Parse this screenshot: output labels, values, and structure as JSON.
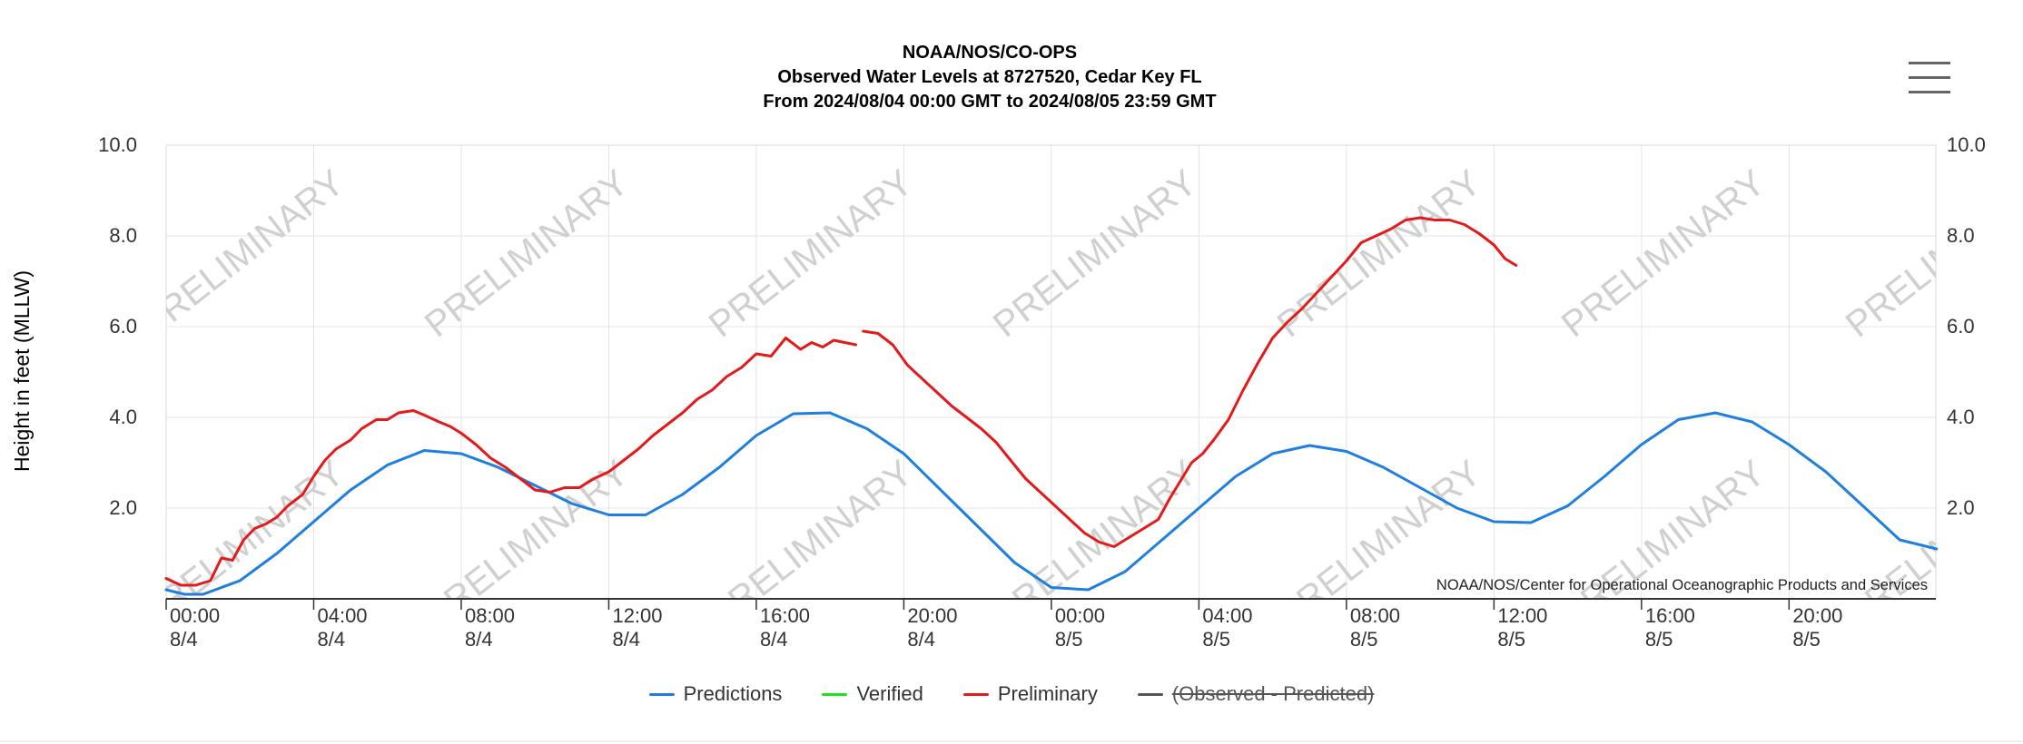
{
  "header": {
    "title_lines": [
      "NOAA/NOS/CO-OPS",
      "Observed Water Levels at 8727520, Cedar Key FL",
      "From 2024/08/04 00:00 GMT to 2024/08/05 23:59 GMT"
    ]
  },
  "menu": {
    "icon": "hamburger-menu-icon"
  },
  "watermark": {
    "text": "PRELIMINARY"
  },
  "credit": {
    "text": "NOAA/NOS/Center for Operational Oceanographic Products and Services"
  },
  "legend": {
    "items": [
      {
        "label": "Predictions",
        "color": "#1f7fe0"
      },
      {
        "label": "Verified",
        "color": "#1de31d"
      },
      {
        "label": "Preliminary",
        "color": "#e41a1a"
      },
      {
        "label": "(Observed - Predicted)",
        "color": "#555555",
        "disabled": true
      }
    ]
  },
  "chart_data": {
    "type": "line",
    "title": "NOAA/NOS/CO-OPS",
    "ylabel": "Height in feet (MLLW)",
    "xlabel": "",
    "ylim": [
      0,
      10
    ],
    "y_ticks": [
      "2.0",
      "4.0",
      "6.0",
      "8.0",
      "10.0"
    ],
    "y_tick_values": [
      2,
      4,
      6,
      8,
      10
    ],
    "x_unit": "hours since 2024/08/04 00:00 GMT",
    "xlim": [
      0,
      47.98
    ],
    "x_ticks": [
      {
        "time": "00:00",
        "date": "8/4"
      },
      {
        "time": "04:00",
        "date": "8/4"
      },
      {
        "time": "08:00",
        "date": "8/4"
      },
      {
        "time": "12:00",
        "date": "8/4"
      },
      {
        "time": "16:00",
        "date": "8/4"
      },
      {
        "time": "20:00",
        "date": "8/4"
      },
      {
        "time": "00:00",
        "date": "8/5"
      },
      {
        "time": "04:00",
        "date": "8/5"
      },
      {
        "time": "08:00",
        "date": "8/5"
      },
      {
        "time": "12:00",
        "date": "8/5"
      },
      {
        "time": "16:00",
        "date": "8/5"
      },
      {
        "time": "20:00",
        "date": "8/5"
      }
    ],
    "x_tick_values": [
      0,
      4,
      8,
      12,
      16,
      20,
      24,
      28,
      32,
      36,
      40,
      44
    ],
    "grid": true,
    "legend_position": "bottom",
    "series": [
      {
        "name": "Predictions",
        "color": "#1f7fe0",
        "x": [
          0,
          0.5,
          1,
          2,
          3,
          4,
          5,
          6,
          7,
          8,
          9,
          10,
          11,
          12,
          13,
          14,
          15,
          16,
          17,
          18,
          19,
          20,
          21,
          22,
          23,
          24,
          25,
          26,
          27,
          28,
          29,
          30,
          31,
          32,
          33,
          34,
          35,
          36,
          37,
          38,
          39,
          40,
          41,
          42,
          43,
          44,
          45,
          46,
          47,
          48
        ],
        "y": [
          0.2,
          0.1,
          0.1,
          0.4,
          1.0,
          1.7,
          2.4,
          2.95,
          3.27,
          3.2,
          2.9,
          2.5,
          2.1,
          1.85,
          1.85,
          2.3,
          2.9,
          3.6,
          4.08,
          4.1,
          3.75,
          3.2,
          2.4,
          1.6,
          0.8,
          0.25,
          0.2,
          0.6,
          1.3,
          2.0,
          2.7,
          3.2,
          3.38,
          3.25,
          2.9,
          2.45,
          2.0,
          1.7,
          1.68,
          2.05,
          2.7,
          3.4,
          3.95,
          4.1,
          3.9,
          3.4,
          2.8,
          2.05,
          1.3,
          1.1
        ]
      },
      {
        "name": "Preliminary",
        "color": "#e41a1a",
        "x": [
          0,
          0.4,
          0.8,
          1.2,
          1.5,
          1.8,
          2.1,
          2.4,
          2.7,
          3.0,
          3.3,
          3.7,
          4.0,
          4.3,
          4.6,
          5.0,
          5.3,
          5.7,
          6.0,
          6.3,
          6.7,
          7.0,
          7.4,
          7.7,
          8.0,
          8.4,
          8.8,
          9.2,
          9.6,
          10.0,
          10.4,
          10.8,
          11.2,
          11.6,
          12.0,
          12.4,
          12.8,
          13.2,
          13.6,
          14.0,
          14.4,
          14.8,
          15.2,
          15.6,
          16.0,
          16.4,
          16.8,
          17.2,
          17.5,
          17.8,
          18.1,
          18.4,
          18.7
        ],
        "y": [
          0.45,
          0.3,
          0.3,
          0.4,
          0.9,
          0.85,
          1.3,
          1.55,
          1.65,
          1.8,
          2.05,
          2.3,
          2.7,
          3.05,
          3.3,
          3.5,
          3.75,
          3.95,
          3.95,
          4.1,
          4.15,
          4.05,
          3.9,
          3.8,
          3.65,
          3.4,
          3.1,
          2.9,
          2.65,
          2.4,
          2.35,
          2.45,
          2.45,
          2.65,
          2.8,
          3.05,
          3.3,
          3.6,
          3.85,
          4.1,
          4.4,
          4.6,
          4.9,
          5.1,
          5.4,
          5.35,
          5.75,
          5.5,
          5.65,
          5.55,
          5.7,
          5.65,
          5.6
        ]
      },
      {
        "name": "Preliminary",
        "color": "#e41a1a",
        "x": [
          18.9,
          19.3,
          19.7,
          20.1,
          20.5,
          20.9,
          21.3,
          21.7,
          22.1,
          22.5,
          22.9,
          23.3,
          23.7,
          24.1,
          24.5,
          24.9,
          25.3,
          25.7,
          26.1,
          26.5,
          26.9,
          27.2,
          27.5,
          27.8,
          28.1,
          28.4,
          28.8,
          29.2,
          29.6,
          30.0,
          30.4,
          30.8,
          31.2,
          31.6,
          32.0,
          32.4,
          32.8,
          33.2,
          33.6,
          34.0,
          34.4,
          34.8,
          35.2,
          35.6,
          36.0,
          36.3,
          36.6
        ],
        "y": [
          5.9,
          5.85,
          5.6,
          5.15,
          4.85,
          4.55,
          4.25,
          4.0,
          3.75,
          3.45,
          3.05,
          2.65,
          2.35,
          2.05,
          1.75,
          1.45,
          1.25,
          1.15,
          1.35,
          1.55,
          1.75,
          2.2,
          2.6,
          3.0,
          3.2,
          3.5,
          3.95,
          4.6,
          5.2,
          5.75,
          6.1,
          6.4,
          6.75,
          7.1,
          7.45,
          7.85,
          8.0,
          8.15,
          8.35,
          8.4,
          8.35,
          8.35,
          8.25,
          8.05,
          7.8,
          7.5,
          7.35
        ]
      }
    ]
  }
}
